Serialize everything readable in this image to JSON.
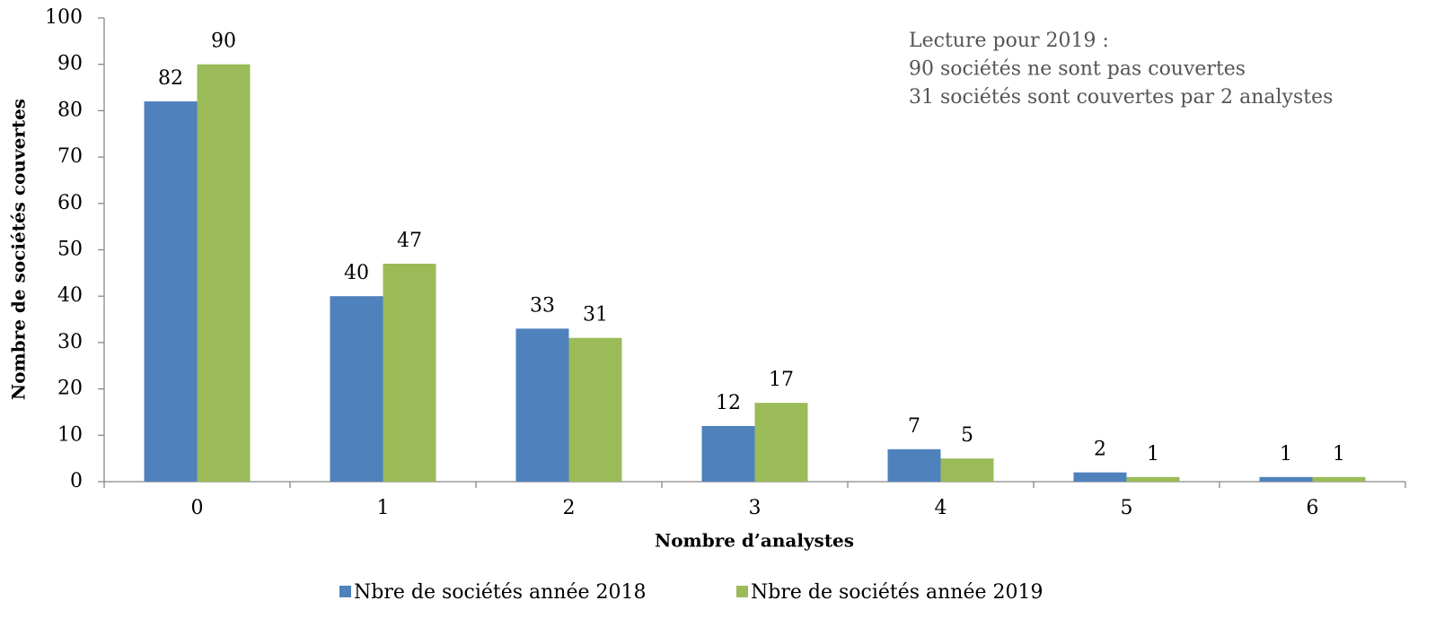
{
  "chart_data": {
    "type": "bar",
    "x_label": "Nombre d’analystes",
    "y_label": "Nombre de sociétés couvertes",
    "annotation": [
      "Lecture pour 2019 :",
      "90 sociétés ne sont pas couvertes",
      "31 sociétés sont couvertes par 2 analystes"
    ],
    "categories": [
      "0",
      "1",
      "2",
      "3",
      "4",
      "5",
      "6"
    ],
    "series": [
      {
        "name": "Nbre de sociétés année 2018",
        "color": "#4f81bd",
        "values": [
          82,
          40,
          33,
          12,
          7,
          2,
          1
        ]
      },
      {
        "name": "Nbre de sociétés année 2019",
        "color": "#9bbb59",
        "values": [
          90,
          47,
          31,
          17,
          5,
          1,
          1
        ]
      }
    ],
    "ylim": [
      0,
      100
    ],
    "yticks": [
      0,
      10,
      20,
      30,
      40,
      50,
      60,
      70,
      80,
      90,
      100
    ],
    "grid": false,
    "legend": "bottom"
  }
}
